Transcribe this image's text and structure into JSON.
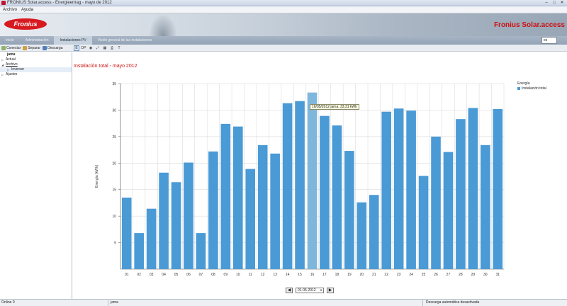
{
  "window": {
    "title": "FRONIUS Solar.access - Energieertrag - mayo de 2012",
    "buttons": [
      "–",
      "□",
      "✕"
    ]
  },
  "menu": {
    "items": [
      "Archivo",
      "Ayuda"
    ]
  },
  "banner": {
    "logo_text": "Fronius",
    "brand": "Fronius Solar.access"
  },
  "nav": {
    "tabs": [
      "Inicio",
      "Administración",
      "Instalaciones PV",
      "Visión general de las instalaciones"
    ],
    "active_index": 2,
    "language": "es"
  },
  "toolbar": {
    "left": [
      {
        "label": "Conectar",
        "icon": "connect-icon"
      },
      {
        "label": "Separar",
        "icon": "disconnect-icon"
      },
      {
        "label": "Descarga",
        "icon": "download-icon"
      }
    ],
    "chart_tools": [
      "E",
      "DP",
      "◉",
      "⤢",
      "▦",
      "⎙",
      "T"
    ]
  },
  "sidebar": {
    "user": "jama",
    "items": [
      {
        "label": "Actual",
        "expanded": false,
        "child": false
      },
      {
        "label": "Archivo",
        "expanded": true,
        "child": false
      },
      {
        "label": "Inversor",
        "expanded": false,
        "child": true
      },
      {
        "label": "Ajustes",
        "expanded": false,
        "child": false
      }
    ]
  },
  "main": {
    "title": "Instalación total - mayo 2012",
    "tooltip": "16/05/2012 jama: 33,31 kWh",
    "date_value": "01-05-2012",
    "prev": "◀",
    "next": "▶"
  },
  "chart_data": {
    "type": "bar",
    "title": "Instalación total - mayo 2012",
    "ylabel": "Energía [kWh]",
    "xlabel": "",
    "ylim": [
      0,
      35
    ],
    "yticks": [
      5,
      10,
      15,
      20,
      25,
      30,
      35
    ],
    "grid": true,
    "legend_title": "Energía",
    "legend_placement": "top-right",
    "categories": [
      "01",
      "02",
      "03",
      "04",
      "05",
      "06",
      "07",
      "08",
      "09",
      "10",
      "11",
      "12",
      "13",
      "14",
      "15",
      "16",
      "17",
      "18",
      "19",
      "20",
      "21",
      "22",
      "23",
      "24",
      "25",
      "26",
      "27",
      "28",
      "29",
      "30",
      "31"
    ],
    "series": [
      {
        "name": "Instalación total",
        "color": "#4a9ad6",
        "highlight_color": "#7fb6dc",
        "highlight_index": 15,
        "values": [
          13.5,
          6.8,
          11.4,
          18.2,
          16.4,
          20.1,
          6.8,
          22.2,
          27.4,
          26.9,
          18.9,
          23.4,
          21.8,
          31.3,
          31.7,
          33.31,
          28.9,
          27.1,
          22.3,
          12.6,
          14.0,
          29.7,
          30.3,
          29.9,
          17.6,
          25.0,
          22.1,
          28.3,
          30.4,
          23.4,
          30.2
        ]
      }
    ]
  },
  "status": {
    "left": "Online 0",
    "middle": "jama",
    "right": "Descarga automática desactivada"
  }
}
